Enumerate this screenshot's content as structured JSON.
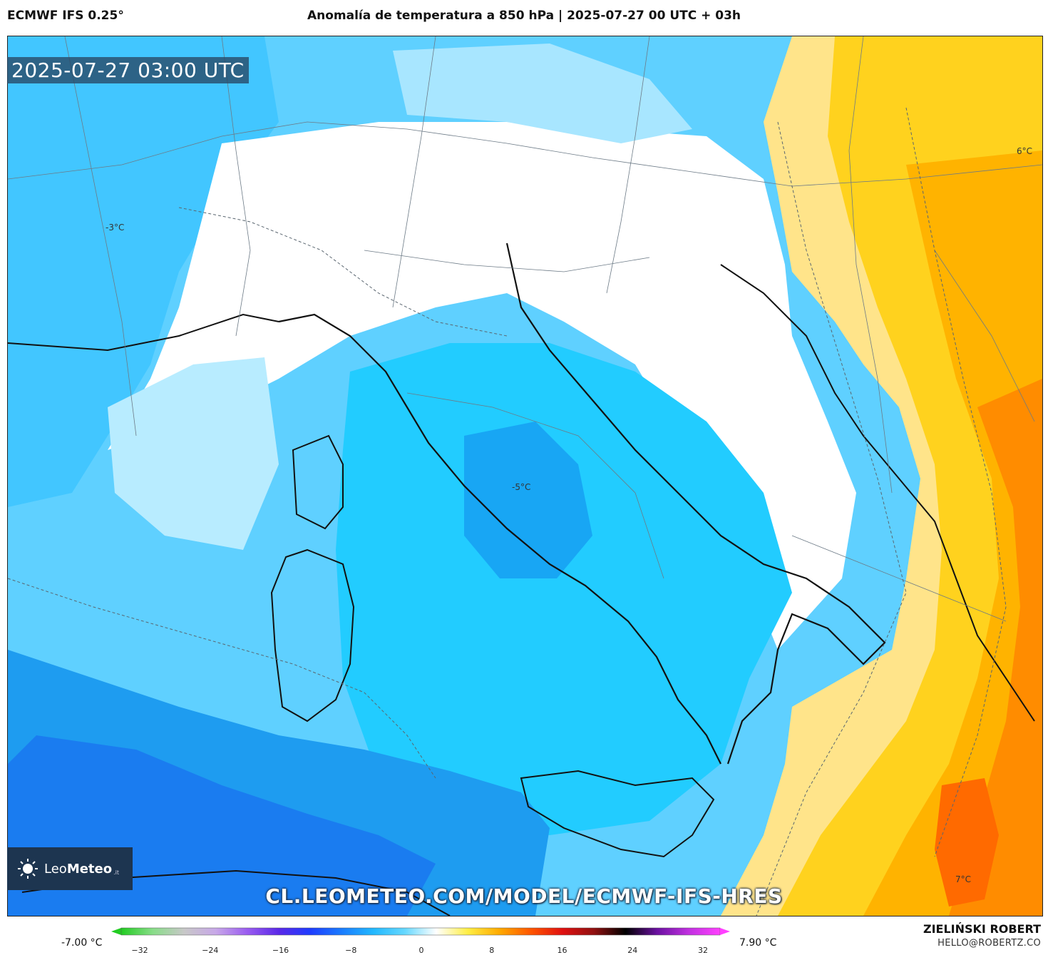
{
  "header": {
    "model": "ECMWF IFS 0.25°",
    "title": "Anomalía de temperatura a 850 hPa | 2025-07-27 00 UTC + 03h"
  },
  "map": {
    "timestamp": "2025-07-27 03:00 UTC",
    "labels": {
      "west": "-3°C",
      "center": "-5°C",
      "northeast": "6°C",
      "southeast": "7°C"
    },
    "url": "CL.LEOMETEO.COM/MODEL/ECMWF-IFS-HRES"
  },
  "logo": {
    "name": "Leo",
    "name_bold": "Meteo",
    "suffix": ".it"
  },
  "colorbar": {
    "min_label": "-7.00 °C",
    "max_label": "7.90 °C",
    "ticks": [
      "−32",
      "−24",
      "−16",
      "−8",
      "0",
      "8",
      "16",
      "24",
      "32"
    ],
    "colors": [
      "#22cc22",
      "#88dd88",
      "#c8c8c8",
      "#c8a8e8",
      "#9a5cf0",
      "#5a28e8",
      "#1e3cff",
      "#1a7cff",
      "#22b8ff",
      "#66d8ff",
      "#ffffff",
      "#ffee44",
      "#ffaa00",
      "#ff5500",
      "#e01010",
      "#901010",
      "#000000",
      "#6a10a0",
      "#c030e0",
      "#ff40ff"
    ]
  },
  "author": {
    "name": "ZIELIŃSKI ROBERT",
    "email": "HELLO@ROBERTZ.CO"
  }
}
